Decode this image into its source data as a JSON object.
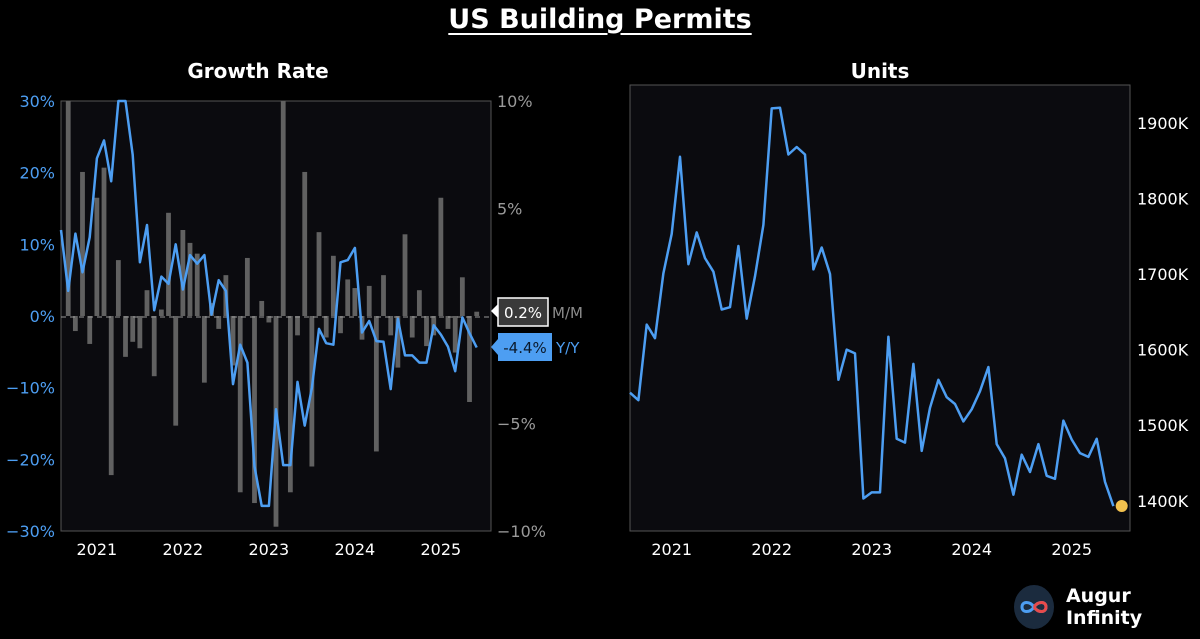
{
  "title": "US Building Permits",
  "brand": {
    "name": "Augur Infinity",
    "logo_icon": "infinity-logo-icon"
  },
  "colors": {
    "background": "#000000",
    "panel": "#0b0b0f",
    "line": "#4d9ef2",
    "bars": "#616161",
    "marker": "#f2c14e",
    "axis_text_left": "#4d9ef2",
    "axis_text_right": "#9a9a9a"
  },
  "chart_data": [
    {
      "type": "bar+line",
      "title": "Growth Rate",
      "x_tick_labels": [
        "2021",
        "2022",
        "2023",
        "2024",
        "2025"
      ],
      "x_ticks": [
        2021,
        2022,
        2023,
        2024,
        2025
      ],
      "xlim": [
        2020.583,
        2025.583
      ],
      "y_left": {
        "ylim": [
          -30,
          30
        ],
        "ticks": [
          "30%",
          "20%",
          "10%",
          "0%",
          "−10%",
          "−20%",
          "−30%"
        ]
      },
      "y_right": {
        "ylim": [
          -10,
          10
        ],
        "ticks": [
          "10%",
          "5%",
          "",
          "−5%",
          "−10%"
        ]
      },
      "series": [
        {
          "name": "M/M",
          "axis": "right",
          "type": "bar",
          "x": [
            2020.667,
            2020.75,
            2020.833,
            2020.917,
            2021.0,
            2021.083,
            2021.167,
            2021.25,
            2021.333,
            2021.417,
            2021.5,
            2021.583,
            2021.667,
            2021.75,
            2021.833,
            2021.917,
            2022.0,
            2022.083,
            2022.167,
            2022.25,
            2022.333,
            2022.417,
            2022.5,
            2022.583,
            2022.667,
            2022.75,
            2022.833,
            2022.917,
            2023.0,
            2023.083,
            2023.167,
            2023.25,
            2023.333,
            2023.417,
            2023.5,
            2023.583,
            2023.667,
            2023.75,
            2023.833,
            2023.917,
            2024.0,
            2024.083,
            2024.167,
            2024.25,
            2024.333,
            2024.417,
            2024.5,
            2024.583,
            2024.667,
            2024.75,
            2024.833,
            2024.917,
            2025.0,
            2025.083,
            2025.167,
            2025.25,
            2025.333,
            2025.417
          ],
          "values": [
            10,
            -0.7,
            6.7,
            -1.3,
            5.5,
            6.9,
            -7.4,
            2.6,
            -1.9,
            -1.2,
            -1.5,
            1.2,
            -2.8,
            0.3,
            4.8,
            -5.1,
            4,
            3.4,
            2.9,
            -3.1,
            0.6,
            -0.6,
            1.9,
            -2.3,
            -8.2,
            2.7,
            -8.7,
            0.7,
            -0.3,
            -9.8,
            10.4,
            -8.2,
            -0.9,
            6.7,
            -7,
            3.9,
            -1,
            2.8,
            -0.8,
            1.7,
            1.3,
            -1.1,
            1.4,
            -6.3,
            1.9,
            -0.9,
            -2.4,
            3.8,
            -1,
            1.2,
            -1.4,
            -0.9,
            5.5,
            -0.6,
            -1.7,
            1.8,
            -4,
            0.2
          ]
        },
        {
          "name": "Y/Y",
          "axis": "left",
          "type": "line",
          "x": [
            2020.583,
            2020.667,
            2020.75,
            2020.833,
            2020.917,
            2021.0,
            2021.083,
            2021.167,
            2021.25,
            2021.333,
            2021.417,
            2021.5,
            2021.583,
            2021.667,
            2021.75,
            2021.833,
            2021.917,
            2022.0,
            2022.083,
            2022.167,
            2022.25,
            2022.333,
            2022.417,
            2022.5,
            2022.583,
            2022.667,
            2022.75,
            2022.833,
            2022.917,
            2023.0,
            2023.083,
            2023.167,
            2023.25,
            2023.333,
            2023.417,
            2023.5,
            2023.583,
            2023.667,
            2023.75,
            2023.833,
            2023.917,
            2024.0,
            2024.083,
            2024.167,
            2024.25,
            2024.333,
            2024.417,
            2024.5,
            2024.583,
            2024.667,
            2024.75,
            2024.833,
            2024.917,
            2025.0,
            2025.083,
            2025.167,
            2025.25,
            2025.333,
            2025.417
          ],
          "values": [
            12,
            3.5,
            11.5,
            6.1,
            11,
            22,
            24.5,
            18.8,
            31,
            31,
            22.5,
            7.5,
            12.7,
            0.8,
            5.5,
            4.5,
            10,
            3.7,
            8.5,
            7.3,
            8.5,
            0.2,
            5,
            3.5,
            -9.5,
            -4,
            -6.5,
            -21,
            -26.5,
            -26.5,
            -13,
            -20.8,
            -20.8,
            -9.2,
            -15.3,
            -10,
            -1.8,
            -3.8,
            -4,
            7.5,
            7.8,
            9.5,
            -2.3,
            -0.7,
            -3.5,
            -3.6,
            -10.2,
            -0.4,
            -5.5,
            -5.5,
            -6.5,
            -6.5,
            -1.3,
            -2.6,
            -4.3,
            -7.7,
            -0.2,
            -2.4,
            -4.4
          ]
        }
      ],
      "labels": {
        "mm_value": "0.2%",
        "mm_name": "M/M",
        "yy_value": "-4.4%",
        "yy_name": "Y/Y"
      }
    },
    {
      "type": "line",
      "title": "Units",
      "x_tick_labels": [
        "2021",
        "2022",
        "2023",
        "2024",
        "2025"
      ],
      "x_ticks": [
        2021,
        2022,
        2023,
        2024,
        2025
      ],
      "xlim": [
        2020.583,
        2025.583
      ],
      "y_right": {
        "ylim": [
          1360,
          1950
        ],
        "ticks": [
          "1900K",
          "1800K",
          "1700K",
          "1600K",
          "1500K",
          "1400K"
        ],
        "tick_values": [
          1900,
          1800,
          1700,
          1600,
          1500,
          1400
        ]
      },
      "series": [
        {
          "name": "Units",
          "x": [
            2020.583,
            2020.667,
            2020.75,
            2020.833,
            2020.917,
            2021.0,
            2021.083,
            2021.167,
            2021.25,
            2021.333,
            2021.417,
            2021.5,
            2021.583,
            2021.667,
            2021.75,
            2021.833,
            2021.917,
            2022.0,
            2022.083,
            2022.167,
            2022.25,
            2022.333,
            2022.417,
            2022.5,
            2022.583,
            2022.667,
            2022.75,
            2022.833,
            2022.917,
            2023.0,
            2023.083,
            2023.167,
            2023.25,
            2023.333,
            2023.417,
            2023.5,
            2023.583,
            2023.667,
            2023.75,
            2023.833,
            2023.917,
            2024.0,
            2024.083,
            2024.167,
            2024.25,
            2024.333,
            2024.417,
            2024.5,
            2024.583,
            2024.667,
            2024.75,
            2024.833,
            2024.917,
            2025.0,
            2025.083,
            2025.167,
            2025.25,
            2025.333,
            2025.417
          ],
          "values": [
            1543,
            1533,
            1633,
            1615,
            1701,
            1753,
            1855,
            1713,
            1755,
            1721,
            1703,
            1653,
            1656,
            1737,
            1641,
            1697,
            1765,
            1919,
            1920,
            1858,
            1868,
            1858,
            1706,
            1735,
            1700,
            1560,
            1600,
            1595,
            1403,
            1411,
            1411,
            1617,
            1482,
            1477,
            1581,
            1466,
            1523,
            1560,
            1537,
            1528,
            1505,
            1521,
            1545,
            1577,
            1475,
            1456,
            1408,
            1461,
            1438,
            1475,
            1433,
            1429,
            1506,
            1481,
            1463,
            1458,
            1482,
            1425,
            1393
          ]
        }
      ],
      "last_marker": {
        "x": 2025.5,
        "value": 1393
      }
    }
  ]
}
